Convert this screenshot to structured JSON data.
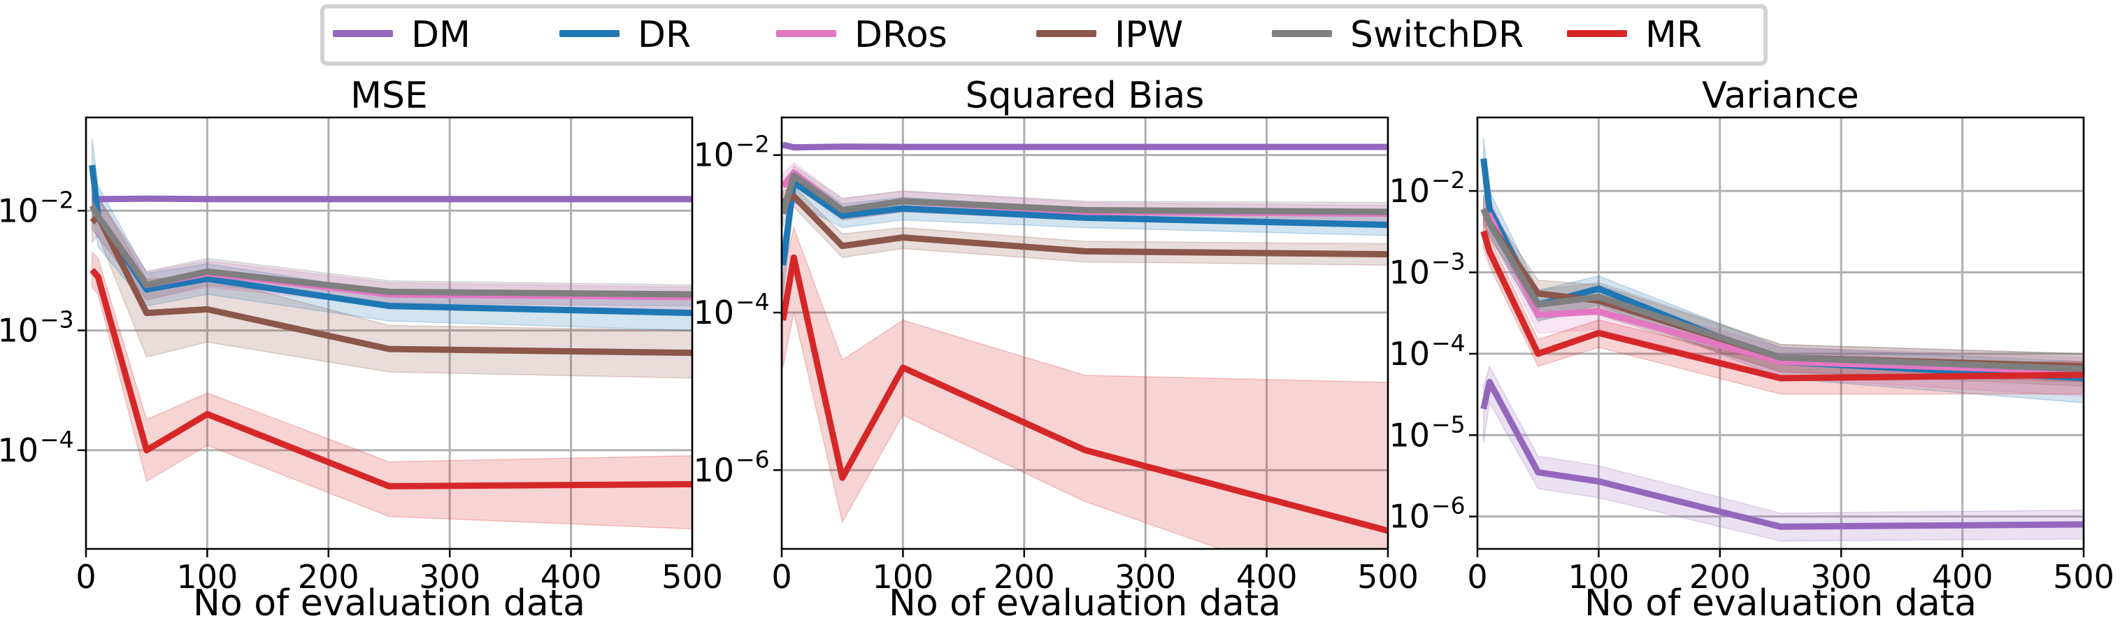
{
  "legend": [
    {
      "name": "DM",
      "color": "#9467bd"
    },
    {
      "name": "DR",
      "color": "#1f77b4"
    },
    {
      "name": "DRos",
      "color": "#e377c2"
    },
    {
      "name": "IPW",
      "color": "#8c564b"
    },
    {
      "name": "SwitchDR",
      "color": "#7f7f7f"
    },
    {
      "name": "MR",
      "color": "#d62728"
    }
  ],
  "chart_data": [
    {
      "type": "line",
      "title": "MSE",
      "xlabel": "No of evaluation data",
      "ylabel": "",
      "xlim": [
        0,
        500
      ],
      "ylim": [
        1.5e-05,
        0.06
      ],
      "yscale": "log",
      "xticks": [
        0,
        100,
        200,
        300,
        400,
        500
      ],
      "yticks": [
        {
          "value": 0.01,
          "base": "10",
          "exp": "−2"
        },
        {
          "value": 0.001,
          "base": "10",
          "exp": "−3"
        },
        {
          "value": 0.0001,
          "base": "10",
          "exp": "−4"
        }
      ],
      "grid": true,
      "x": [
        5,
        10,
        50,
        100,
        250,
        500
      ],
      "series": [
        {
          "name": "DM",
          "values": [
            0.0125,
            0.0125,
            0.0126,
            0.0125,
            0.0125,
            0.0125
          ],
          "lower": [
            0.0123,
            0.0123,
            0.0124,
            0.0123,
            0.0123,
            0.0123
          ],
          "upper": [
            0.0127,
            0.0127,
            0.0128,
            0.0127,
            0.0127,
            0.0127
          ]
        },
        {
          "name": "DR",
          "values": [
            0.024,
            0.009,
            0.0022,
            0.0027,
            0.0016,
            0.0014
          ],
          "lower": [
            0.01,
            0.005,
            0.0016,
            0.002,
            0.0012,
            0.001
          ],
          "upper": [
            0.04,
            0.016,
            0.003,
            0.0036,
            0.0021,
            0.0019
          ]
        },
        {
          "name": "DRos",
          "values": [
            0.011,
            0.009,
            0.0024,
            0.003,
            0.002,
            0.0019
          ],
          "lower": [
            0.007,
            0.006,
            0.0018,
            0.0023,
            0.0016,
            0.0015
          ],
          "upper": [
            0.016,
            0.013,
            0.0031,
            0.0038,
            0.0025,
            0.0023
          ]
        },
        {
          "name": "IPW",
          "values": [
            0.008,
            0.009,
            0.0014,
            0.0015,
            0.0007,
            0.00065
          ],
          "lower": [
            0.0055,
            0.0062,
            0.0006,
            0.0008,
            0.00045,
            0.0004
          ],
          "upper": [
            0.012,
            0.013,
            0.0027,
            0.0028,
            0.0011,
            0.001
          ]
        },
        {
          "name": "SwitchDR",
          "values": [
            0.011,
            0.009,
            0.0024,
            0.0031,
            0.0021,
            0.002
          ],
          "lower": [
            0.007,
            0.006,
            0.0018,
            0.0024,
            0.0017,
            0.0016
          ],
          "upper": [
            0.016,
            0.013,
            0.0031,
            0.004,
            0.0026,
            0.0024
          ]
        },
        {
          "name": "MR",
          "values": [
            0.0032,
            0.0028,
            0.0001,
            0.0002,
            5e-05,
            5.2e-05
          ],
          "lower": [
            0.0023,
            0.002,
            5.5e-05,
            0.00011,
            2.8e-05,
            2.2e-05
          ],
          "upper": [
            0.0045,
            0.004,
            0.00018,
            0.0003,
            8e-05,
            9e-05
          ]
        }
      ]
    },
    {
      "type": "line",
      "title": "Squared Bias",
      "xlabel": "No of evaluation data",
      "ylabel": "",
      "xlim": [
        0,
        500
      ],
      "ylim": [
        1e-07,
        0.03
      ],
      "yscale": "log",
      "xticks": [
        0,
        100,
        200,
        300,
        400,
        500
      ],
      "yticks": [
        {
          "value": 0.01,
          "base": "10",
          "exp": "−2"
        },
        {
          "value": 0.0001,
          "base": "10",
          "exp": "−4"
        },
        {
          "value": 1e-06,
          "base": "10",
          "exp": "−6"
        }
      ],
      "grid": true,
      "x": [
        1,
        10,
        50,
        100,
        250,
        500
      ],
      "series": [
        {
          "name": "DM",
          "values": [
            0.0135,
            0.0125,
            0.0128,
            0.0127,
            0.0127,
            0.0127
          ],
          "lower": [
            0.0127,
            0.0118,
            0.0121,
            0.012,
            0.012,
            0.012
          ],
          "upper": [
            0.0143,
            0.0133,
            0.0135,
            0.0134,
            0.0134,
            0.0134
          ]
        },
        {
          "name": "DR",
          "values": [
            0.0004,
            0.0045,
            0.0017,
            0.0021,
            0.0016,
            0.0013
          ],
          "lower": [
            0.00015,
            0.0025,
            0.0012,
            0.0015,
            0.0012,
            0.00095
          ],
          "upper": [
            0.0008,
            0.0065,
            0.0024,
            0.0029,
            0.0021,
            0.0018
          ]
        },
        {
          "name": "DRos",
          "values": [
            0.004,
            0.006,
            0.002,
            0.0026,
            0.0019,
            0.0018
          ],
          "lower": [
            0.0025,
            0.0042,
            0.0015,
            0.0019,
            0.0015,
            0.0014
          ],
          "upper": [
            0.0058,
            0.008,
            0.0028,
            0.0035,
            0.0025,
            0.0023
          ]
        },
        {
          "name": "IPW",
          "values": [
            0.0025,
            0.003,
            0.0007,
            0.0009,
            0.0006,
            0.00055
          ],
          "lower": [
            0.0018,
            0.0022,
            0.0005,
            0.00065,
            0.00044,
            0.0004
          ],
          "upper": [
            0.0035,
            0.004,
            0.001,
            0.0012,
            0.0008,
            0.00075
          ]
        },
        {
          "name": "SwitchDR",
          "values": [
            0.0018,
            0.0055,
            0.002,
            0.0026,
            0.002,
            0.0019
          ],
          "lower": [
            0.0012,
            0.004,
            0.0015,
            0.0019,
            0.0015,
            0.0014
          ],
          "upper": [
            0.0026,
            0.0073,
            0.0028,
            0.0035,
            0.0026,
            0.0025
          ]
        },
        {
          "name": "MR",
          "values": [
            8e-05,
            0.0005,
            8e-07,
            2e-05,
            1.8e-06,
            1.7e-07
          ],
          "lower": [
            2e-05,
            0.0001,
            2.2e-07,
            5e-06,
            4e-07,
            1.8e-08
          ],
          "upper": [
            0.0003,
            0.0012,
            2.5e-05,
            8e-05,
            1.6e-05,
            1.3e-05
          ]
        }
      ]
    },
    {
      "type": "line",
      "title": "Variance",
      "xlabel": "No of evaluation data",
      "ylabel": "",
      "xlim": [
        0,
        500
      ],
      "ylim": [
        4e-07,
        0.08
      ],
      "yscale": "log",
      "xticks": [
        0,
        100,
        200,
        300,
        400,
        500
      ],
      "yticks": [
        {
          "value": 0.01,
          "base": "10",
          "exp": "−2"
        },
        {
          "value": 0.001,
          "base": "10",
          "exp": "−3"
        },
        {
          "value": 0.0001,
          "base": "10",
          "exp": "−4"
        },
        {
          "value": 1e-05,
          "base": "10",
          "exp": "−5"
        },
        {
          "value": 1e-06,
          "base": "10",
          "exp": "−6"
        }
      ],
      "grid": true,
      "x": [
        5,
        10,
        50,
        100,
        250,
        500
      ],
      "series": [
        {
          "name": "DM",
          "values": [
            2.1e-05,
            4.5e-05,
            3.5e-06,
            2.7e-06,
            7.5e-07,
            8e-07
          ],
          "lower": [
            8e-06,
            2.5e-05,
            2.2e-06,
            1.7e-06,
            5e-07,
            5.3e-07
          ],
          "upper": [
            4e-05,
            7e-05,
            5.5e-06,
            4.2e-06,
            1.1e-06,
            1.2e-06
          ]
        },
        {
          "name": "DR",
          "values": [
            0.025,
            0.006,
            0.0004,
            0.00063,
            8e-05,
            5e-05
          ],
          "lower": [
            0.012,
            0.003,
            0.00025,
            0.0004,
            5e-05,
            2.5e-05
          ],
          "upper": [
            0.045,
            0.01,
            0.0006,
            0.0009,
            0.00012,
            8e-05
          ]
        },
        {
          "name": "DRos",
          "values": [
            0.005,
            0.005,
            0.0003,
            0.00033,
            8e-05,
            6e-05
          ],
          "lower": [
            0.003,
            0.003,
            0.00018,
            0.0002,
            5e-05,
            3e-05
          ],
          "upper": [
            0.008,
            0.008,
            0.00045,
            0.0005,
            0.00012,
            9e-05
          ]
        },
        {
          "name": "IPW",
          "values": [
            0.006,
            0.004,
            0.00055,
            0.00045,
            9e-05,
            7e-05
          ],
          "lower": [
            0.004,
            0.0027,
            0.00035,
            0.0003,
            6e-05,
            4.5e-05
          ],
          "upper": [
            0.009,
            0.006,
            0.0008,
            0.0007,
            0.00013,
            0.0001
          ]
        },
        {
          "name": "SwitchDR",
          "values": [
            0.006,
            0.004,
            0.0004,
            0.0005,
            9e-05,
            6.5e-05
          ],
          "lower": [
            0.004,
            0.0027,
            0.00026,
            0.00033,
            6e-05,
            4e-05
          ],
          "upper": [
            0.009,
            0.006,
            0.0006,
            0.00075,
            0.00013,
            0.0001
          ]
        },
        {
          "name": "MR",
          "values": [
            0.0032,
            0.0018,
            0.0001,
            0.00018,
            5e-05,
            5.5e-05
          ],
          "lower": [
            0.002,
            0.0012,
            7e-05,
            0.00012,
            3.2e-05,
            3.2e-05
          ],
          "upper": [
            0.005,
            0.0027,
            0.00015,
            0.00026,
            7.5e-05,
            8e-05
          ]
        }
      ]
    }
  ]
}
